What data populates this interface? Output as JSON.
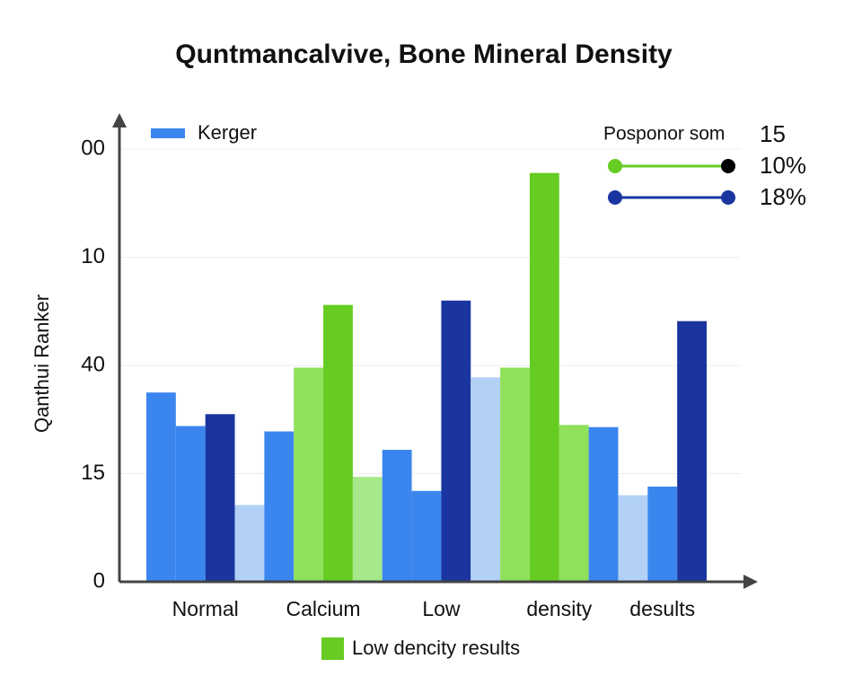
{
  "chart_data": {
    "type": "bar",
    "title": "Quntmancalvive, Bone Mineral Density",
    "y_label": "Qanthui Ranker",
    "ylim": [
      0,
      4.3
    ],
    "yticks": [
      0,
      {
        "value": 1,
        "label": "15"
      },
      {
        "value": 2,
        "label": "40"
      },
      {
        "value": 3,
        "label": "10"
      },
      {
        "value": 4,
        "label": "00"
      }
    ],
    "grid": true,
    "groups": [
      {
        "label": "Normal",
        "bars": [
          {
            "color": "#3b86ee",
            "value": 1.75
          },
          {
            "color": "#3b86ee",
            "value": 1.44
          },
          {
            "color": "#1a35a0",
            "value": 1.55
          },
          {
            "color": "#b3d1f7",
            "value": 0.71
          }
        ]
      },
      {
        "label": "Calcium",
        "bars": [
          {
            "color": "#3b86ee",
            "value": 1.39
          },
          {
            "color": "#8fe05a",
            "value": 1.98
          },
          {
            "color": "#66cc22",
            "value": 2.56
          },
          {
            "color": "#a6e88a",
            "value": 0.97
          }
        ]
      },
      {
        "label": "Low",
        "bars": [
          {
            "color": "#3b86ee",
            "value": 1.22
          },
          {
            "color": "#3b86ee",
            "value": 0.84
          },
          {
            "color": "#1a35a0",
            "value": 2.6
          },
          {
            "color": "#b3d1f7",
            "value": 1.89
          }
        ]
      },
      {
        "label": "density",
        "bars": [
          {
            "color": "#8fe05a",
            "value": 1.98
          },
          {
            "color": "#66cc22",
            "value": 3.78
          },
          {
            "color": "#8fe05a",
            "value": 1.45
          },
          {
            "color": "#3b86ee",
            "value": 1.43
          }
        ]
      },
      {
        "label": "desults",
        "bars": [
          {
            "color": "#b3d1f7",
            "value": 0.8
          },
          {
            "color": "#3b86ee",
            "value": 0.88
          },
          {
            "color": "#1a35a0",
            "value": 2.41
          }
        ]
      }
    ],
    "legend_top_left": {
      "label": "Kerger",
      "color": "#3b86ee"
    },
    "legend_bottom": {
      "label": "Low dencity results",
      "color": "#66cc22"
    },
    "legend_top_right": {
      "title": "Posponor som",
      "title_value": "15",
      "entries": [
        {
          "label": "10%",
          "color": "#66cc22",
          "end_color": "#000000"
        },
        {
          "label": "18%",
          "color": "#1a35a0",
          "end_color": "#1a35a0"
        }
      ]
    }
  }
}
